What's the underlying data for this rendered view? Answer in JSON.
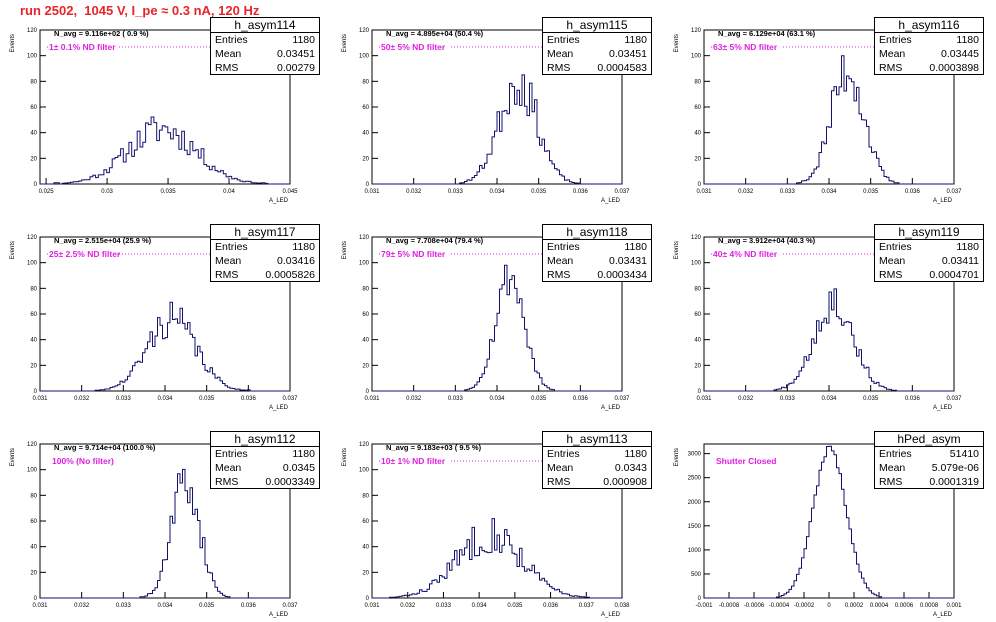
{
  "run_title": "run 2502,  1045 V, I_pe ≈ 0.3 nA, 120 Hz",
  "stats_labels": {
    "entries": "Entries",
    "mean": "Mean",
    "rms": "RMS"
  },
  "ylabel": "Events",
  "xlabel": "A_LED",
  "colors": {
    "histogram": "#10106e",
    "title": "#e8242a",
    "filter_label": "#e020e0"
  },
  "chart_data": [
    {
      "type": "histogram",
      "name": "h_asym114",
      "entries": "1180",
      "mean": "0.03451",
      "rms": "0.00279",
      "info": "N_avg = 9.116e+02 ( 0.9 %)",
      "filter": "1± 0.1% ND filter",
      "filter_dots": true,
      "xlim": [
        0.0245,
        0.045
      ],
      "ylim": [
        0,
        120
      ],
      "xticks": [
        0.025,
        0.03,
        0.035,
        0.04,
        0.045
      ],
      "xtick_labels": [
        "0.025",
        "0.03",
        "0.035",
        "0.04",
        "0.045"
      ],
      "yticks": [
        0,
        20,
        40,
        60,
        80,
        100,
        120
      ],
      "mean_value": 0.03451,
      "rms_value": 0.00279,
      "peak": 43,
      "seed": 11,
      "jitter": 0.3,
      "bins": 90
    },
    {
      "type": "histogram",
      "name": "h_asym115",
      "entries": "1180",
      "mean": "0.03451",
      "rms": "0.0004583",
      "info": "N_avg = 4.895e+04 (50.4 %)",
      "filter": "50± 5% ND filter",
      "filter_dots": true,
      "xlim": [
        0.031,
        0.037
      ],
      "ylim": [
        0,
        120
      ],
      "xticks": [
        0.031,
        0.032,
        0.033,
        0.034,
        0.035,
        0.036,
        0.037
      ],
      "xtick_labels": [
        "0.031",
        "0.032",
        "0.033",
        "0.034",
        "0.035",
        "0.036",
        "0.037"
      ],
      "yticks": [
        0,
        20,
        40,
        60,
        80,
        100,
        120
      ],
      "mean_value": 0.03451,
      "rms_value": 0.0004583,
      "peak": 80,
      "seed": 23,
      "jitter": 0.25,
      "bins": 100
    },
    {
      "type": "histogram",
      "name": "h_asym116",
      "entries": "1180",
      "mean": "0.03445",
      "rms": "0.0003898",
      "info": "N_avg = 6.129e+04 (63.1 %)",
      "filter": "63± 5% ND filter",
      "filter_dots": true,
      "xlim": [
        0.031,
        0.037
      ],
      "ylim": [
        0,
        120
      ],
      "xticks": [
        0.031,
        0.032,
        0.033,
        0.034,
        0.035,
        0.036,
        0.037
      ],
      "xtick_labels": [
        "0.031",
        "0.032",
        "0.033",
        "0.034",
        "0.035",
        "0.036",
        "0.037"
      ],
      "yticks": [
        0,
        20,
        40,
        60,
        80,
        100,
        120
      ],
      "mean_value": 0.03445,
      "rms_value": 0.0003898,
      "peak": 90,
      "seed": 37,
      "jitter": 0.25,
      "bins": 100
    },
    {
      "type": "histogram",
      "name": "h_asym117",
      "entries": "1180",
      "mean": "0.03416",
      "rms": "0.0005826",
      "info": "N_avg = 2.515e+04 (25.9 %)",
      "filter": "25± 2.5% ND filter",
      "filter_dots": true,
      "xlim": [
        0.031,
        0.037
      ],
      "ylim": [
        0,
        120
      ],
      "xticks": [
        0.031,
        0.032,
        0.033,
        0.034,
        0.035,
        0.036,
        0.037
      ],
      "xtick_labels": [
        "0.031",
        "0.032",
        "0.033",
        "0.034",
        "0.035",
        "0.036",
        "0.037"
      ],
      "yticks": [
        0,
        20,
        40,
        60,
        80,
        100,
        120
      ],
      "mean_value": 0.03416,
      "rms_value": 0.0005826,
      "peak": 56,
      "seed": 41,
      "jitter": 0.25,
      "bins": 100
    },
    {
      "type": "histogram",
      "name": "h_asym118",
      "entries": "1180",
      "mean": "0.03431",
      "rms": "0.0003434",
      "info": "N_avg = 7.708e+04 (79.4 %)",
      "filter": "79± 5% ND filter",
      "filter_dots": true,
      "xlim": [
        0.031,
        0.037
      ],
      "ylim": [
        0,
        120
      ],
      "xticks": [
        0.031,
        0.032,
        0.033,
        0.034,
        0.035,
        0.036,
        0.037
      ],
      "xtick_labels": [
        "0.031",
        "0.032",
        "0.033",
        "0.034",
        "0.035",
        "0.036",
        "0.037"
      ],
      "yticks": [
        0,
        20,
        40,
        60,
        80,
        100,
        120
      ],
      "mean_value": 0.03431,
      "rms_value": 0.0003434,
      "peak": 90,
      "seed": 53,
      "jitter": 0.18,
      "bins": 100
    },
    {
      "type": "histogram",
      "name": "h_asym119",
      "entries": "1180",
      "mean": "0.03411",
      "rms": "0.0004701",
      "info": "N_avg = 3.912e+04 (40.3 %)",
      "filter": "40± 4% ND filter",
      "filter_dots": true,
      "xlim": [
        0.031,
        0.037
      ],
      "ylim": [
        0,
        120
      ],
      "xticks": [
        0.031,
        0.032,
        0.033,
        0.034,
        0.035,
        0.036,
        0.037
      ],
      "xtick_labels": [
        "0.031",
        "0.032",
        "0.033",
        "0.034",
        "0.035",
        "0.036",
        "0.037"
      ],
      "yticks": [
        0,
        20,
        40,
        60,
        80,
        100,
        120
      ],
      "mean_value": 0.03411,
      "rms_value": 0.0004701,
      "peak": 70,
      "seed": 67,
      "jitter": 0.22,
      "bins": 100
    },
    {
      "type": "histogram",
      "name": "h_asym112",
      "entries": "1180",
      "mean": "0.0345",
      "rms": "0.0003349",
      "info": "N_avg = 9.714e+04 (100.0 %)",
      "filter": "100% (No filter)",
      "filter_dots": false,
      "xlim": [
        0.031,
        0.037
      ],
      "ylim": [
        0,
        120
      ],
      "xticks": [
        0.031,
        0.032,
        0.033,
        0.034,
        0.035,
        0.036,
        0.037
      ],
      "xtick_labels": [
        "0.031",
        "0.032",
        "0.033",
        "0.034",
        "0.035",
        "0.036",
        "0.037"
      ],
      "yticks": [
        0,
        20,
        40,
        60,
        80,
        100,
        120
      ],
      "mean_value": 0.0345,
      "rms_value": 0.0003349,
      "peak": 92,
      "seed": 71,
      "jitter": 0.22,
      "bins": 100
    },
    {
      "type": "histogram",
      "name": "h_asym113",
      "entries": "1180",
      "mean": "0.0343",
      "rms": "0.000908",
      "info": "N_avg = 9.183e+03 ( 9.5 %)",
      "filter": "10± 1% ND filter",
      "filter_dots": true,
      "xlim": [
        0.031,
        0.038
      ],
      "ylim": [
        0,
        120
      ],
      "xticks": [
        0.031,
        0.032,
        0.033,
        0.034,
        0.035,
        0.036,
        0.037,
        0.038
      ],
      "xtick_labels": [
        "0.031",
        "0.032",
        "0.033",
        "0.034",
        "0.035",
        "0.036",
        "0.037",
        "0.038"
      ],
      "yticks": [
        0,
        20,
        40,
        60,
        80,
        100,
        120
      ],
      "mean_value": 0.0343,
      "rms_value": 0.000908,
      "peak": 50,
      "seed": 83,
      "jitter": 0.3,
      "bins": 100
    },
    {
      "type": "histogram",
      "name": "hPed_asym",
      "entries": "51410",
      "mean": "5.079e-06",
      "rms": "0.0001319",
      "info": "",
      "filter": "Shutter Closed",
      "filter_dots": false,
      "xlim": [
        -0.001,
        0.001
      ],
      "ylim": [
        0,
        3200
      ],
      "xticks": [
        -0.001,
        -0.0008,
        -0.0006,
        -0.0004,
        -0.0002,
        0,
        0.0002,
        0.0004,
        0.0006,
        0.0008,
        0.001
      ],
      "xtick_labels": [
        "-0.001",
        "-0.0008",
        "-0.0006",
        "-0.0004",
        "-0.0002",
        "0",
        "0.0002",
        "0.0004",
        "0.0006",
        "0.0008",
        "0.001"
      ],
      "yticks": [
        0,
        500,
        1000,
        1500,
        2000,
        2500,
        3000
      ],
      "mean_value": 5.079e-06,
      "rms_value": 0.0001319,
      "peak": 3100,
      "seed": 97,
      "jitter": 0.03,
      "bins": 100
    }
  ]
}
